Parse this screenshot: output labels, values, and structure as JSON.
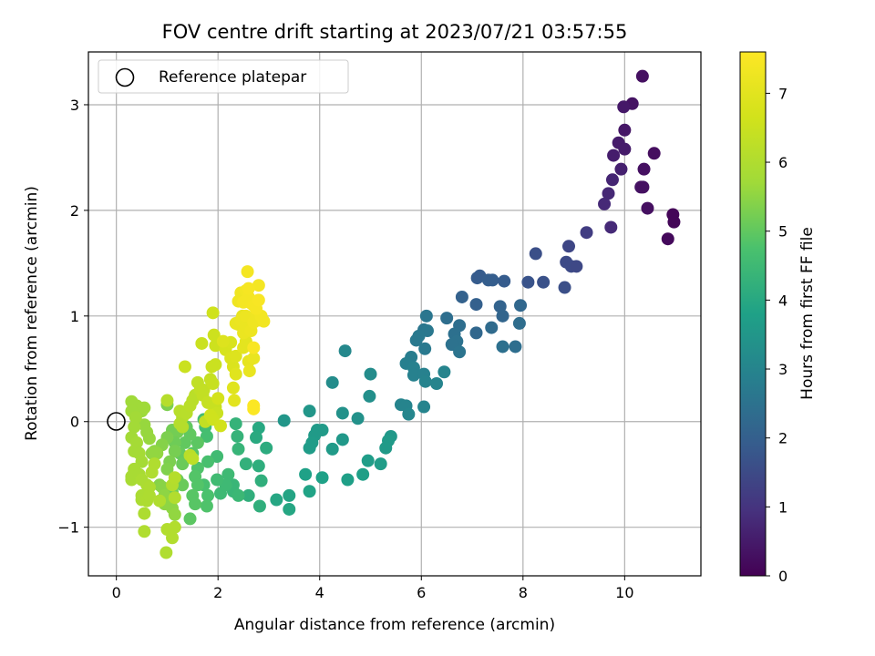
{
  "chart_data": {
    "type": "scatter",
    "title": "FOV centre drift starting at 2023/07/21 03:57:55",
    "xlabel": "Angular distance from reference (arcmin)",
    "ylabel": "Rotation from reference (arcmin)",
    "xlim": [
      -0.55,
      11.5
    ],
    "ylim": [
      -1.46,
      3.5
    ],
    "xticks": [
      0,
      2,
      4,
      6,
      8,
      10
    ],
    "yticks": [
      -1,
      0,
      1,
      2,
      3
    ],
    "xtick_labels": [
      "0",
      "2",
      "4",
      "6",
      "8",
      "10"
    ],
    "ytick_labels": [
      "−1",
      "0",
      "1",
      "2",
      "3"
    ],
    "grid": true,
    "legend": {
      "position": "upper-left",
      "entries": [
        "Reference platepar"
      ]
    },
    "reference_point": {
      "x": 0,
      "y": 0,
      "label": "Reference platepar"
    },
    "colorbar": {
      "label": "Hours from first FF file",
      "range": [
        0,
        7.6
      ],
      "ticks": [
        0,
        1,
        2,
        3,
        4,
        5,
        6,
        7
      ],
      "tick_labels": [
        "0",
        "1",
        "2",
        "3",
        "4",
        "5",
        "6",
        "7"
      ],
      "colormap": "viridis"
    },
    "points": [
      [
        10.35,
        3.27,
        0.3
      ],
      [
        10.15,
        3.01,
        0.35
      ],
      [
        9.98,
        2.98,
        0.45
      ],
      [
        10.0,
        2.76,
        0.4
      ],
      [
        9.88,
        2.64,
        0.5
      ],
      [
        10.0,
        2.58,
        0.5
      ],
      [
        9.78,
        2.52,
        0.55
      ],
      [
        10.58,
        2.54,
        0.25
      ],
      [
        9.93,
        2.39,
        0.6
      ],
      [
        10.38,
        2.39,
        0.3
      ],
      [
        9.76,
        2.29,
        0.7
      ],
      [
        9.68,
        2.16,
        0.75
      ],
      [
        10.32,
        2.22,
        0.35
      ],
      [
        10.36,
        2.22,
        0.3
      ],
      [
        9.6,
        2.06,
        0.8
      ],
      [
        10.45,
        2.02,
        0.3
      ],
      [
        10.95,
        1.96,
        0.1
      ],
      [
        10.97,
        1.89,
        0.1
      ],
      [
        9.73,
        1.84,
        0.8
      ],
      [
        10.85,
        1.73,
        0.15
      ],
      [
        9.25,
        1.79,
        1.2
      ],
      [
        8.9,
        1.66,
        1.4
      ],
      [
        8.25,
        1.59,
        1.6
      ],
      [
        8.85,
        1.51,
        1.5
      ],
      [
        8.95,
        1.47,
        1.5
      ],
      [
        9.05,
        1.47,
        1.45
      ],
      [
        8.1,
        1.32,
        1.7
      ],
      [
        8.4,
        1.32,
        1.65
      ],
      [
        8.82,
        1.27,
        1.6
      ],
      [
        7.1,
        1.36,
        1.9
      ],
      [
        7.15,
        1.38,
        1.9
      ],
      [
        7.32,
        1.34,
        1.95
      ],
      [
        7.4,
        1.34,
        1.95
      ],
      [
        7.63,
        1.33,
        1.9
      ],
      [
        6.8,
        1.18,
        2.05
      ],
      [
        7.08,
        1.11,
        2.0
      ],
      [
        7.55,
        1.09,
        2.1
      ],
      [
        7.95,
        1.1,
        2.2
      ],
      [
        7.6,
        1.0,
        2.15
      ],
      [
        6.5,
        0.98,
        2.4
      ],
      [
        6.75,
        0.91,
        2.4
      ],
      [
        7.38,
        0.89,
        2.3
      ],
      [
        7.93,
        0.93,
        2.35
      ],
      [
        7.08,
        0.84,
        2.2
      ],
      [
        6.65,
        0.83,
        2.45
      ],
      [
        6.7,
        0.76,
        2.5
      ],
      [
        6.6,
        0.73,
        2.5
      ],
      [
        7.6,
        0.71,
        2.45
      ],
      [
        7.85,
        0.71,
        2.4
      ],
      [
        6.75,
        0.66,
        2.55
      ],
      [
        6.1,
        1.0,
        2.6
      ],
      [
        6.05,
        0.87,
        2.6
      ],
      [
        6.12,
        0.86,
        2.65
      ],
      [
        5.95,
        0.81,
        2.7
      ],
      [
        5.9,
        0.77,
        2.7
      ],
      [
        6.07,
        0.69,
        2.7
      ],
      [
        5.8,
        0.61,
        2.8
      ],
      [
        5.7,
        0.55,
        2.85
      ],
      [
        5.85,
        0.51,
        2.9
      ],
      [
        5.85,
        0.44,
        2.9
      ],
      [
        6.05,
        0.45,
        2.9
      ],
      [
        6.08,
        0.38,
        2.95
      ],
      [
        6.3,
        0.36,
        3.0
      ],
      [
        6.45,
        0.47,
        3.0
      ],
      [
        5.6,
        0.16,
        3.0
      ],
      [
        5.7,
        0.15,
        3.0
      ],
      [
        5.75,
        0.07,
        3.05
      ],
      [
        6.05,
        0.14,
        3.0
      ],
      [
        4.5,
        0.67,
        3.1
      ],
      [
        4.25,
        0.37,
        3.2
      ],
      [
        5.0,
        0.45,
        3.2
      ],
      [
        4.98,
        0.24,
        3.3
      ],
      [
        4.45,
        0.08,
        3.35
      ],
      [
        4.75,
        0.03,
        3.35
      ],
      [
        3.8,
        0.1,
        3.5
      ],
      [
        3.3,
        0.01,
        3.5
      ],
      [
        3.95,
        -0.08,
        3.6
      ],
      [
        4.05,
        -0.08,
        3.6
      ],
      [
        3.9,
        -0.13,
        3.6
      ],
      [
        3.85,
        -0.2,
        3.65
      ],
      [
        3.8,
        -0.25,
        3.65
      ],
      [
        4.45,
        -0.17,
        3.55
      ],
      [
        4.25,
        -0.26,
        3.6
      ],
      [
        5.4,
        -0.14,
        3.55
      ],
      [
        5.35,
        -0.18,
        3.6
      ],
      [
        5.3,
        -0.25,
        3.6
      ],
      [
        5.2,
        -0.4,
        3.7
      ],
      [
        4.95,
        -0.37,
        3.7
      ],
      [
        4.85,
        -0.5,
        3.75
      ],
      [
        4.55,
        -0.55,
        3.75
      ],
      [
        4.05,
        -0.53,
        3.8
      ],
      [
        3.8,
        -0.66,
        3.85
      ],
      [
        3.72,
        -0.5,
        3.8
      ],
      [
        3.4,
        -0.7,
        3.9
      ],
      [
        3.4,
        -0.83,
        3.95
      ],
      [
        3.15,
        -0.74,
        3.95
      ],
      [
        2.8,
        -0.06,
        4.0
      ],
      [
        2.75,
        -0.15,
        4.05
      ],
      [
        2.95,
        -0.25,
        4.1
      ],
      [
        2.8,
        -0.42,
        4.15
      ],
      [
        2.85,
        -0.56,
        4.2
      ],
      [
        2.82,
        -0.8,
        4.2
      ],
      [
        2.6,
        -0.7,
        4.2
      ],
      [
        2.55,
        -0.4,
        4.25
      ],
      [
        2.35,
        -0.02,
        4.3
      ],
      [
        2.38,
        -0.14,
        4.3
      ],
      [
        2.4,
        -0.26,
        4.35
      ],
      [
        2.3,
        -0.6,
        4.4
      ],
      [
        2.3,
        -0.66,
        4.4
      ],
      [
        2.4,
        -0.7,
        4.45
      ],
      [
        2.2,
        -0.5,
        4.5
      ],
      [
        2.05,
        -0.68,
        4.5
      ],
      [
        2.15,
        -0.6,
        4.5
      ],
      [
        1.98,
        -0.55,
        4.55
      ],
      [
        1.98,
        -0.33,
        4.55
      ],
      [
        1.75,
        -0.05,
        4.6
      ],
      [
        1.72,
        0.02,
        4.6
      ],
      [
        1.78,
        -0.14,
        4.65
      ],
      [
        1.8,
        -0.38,
        4.7
      ],
      [
        1.72,
        -0.6,
        4.7
      ],
      [
        1.8,
        -0.7,
        4.75
      ],
      [
        1.78,
        -0.8,
        4.8
      ],
      [
        1.6,
        -0.44,
        4.8
      ],
      [
        1.55,
        -0.52,
        4.85
      ],
      [
        1.6,
        -0.6,
        4.85
      ],
      [
        1.5,
        -0.7,
        4.9
      ],
      [
        1.55,
        -0.78,
        4.9
      ],
      [
        1.45,
        -0.92,
        4.95
      ],
      [
        1.5,
        -0.3,
        4.9
      ],
      [
        1.6,
        -0.2,
        4.95
      ],
      [
        1.45,
        -0.12,
        5.0
      ],
      [
        1.38,
        -0.05,
        5.0
      ],
      [
        1.35,
        -0.2,
        5.0
      ],
      [
        1.25,
        -0.3,
        5.05
      ],
      [
        1.3,
        -0.4,
        5.1
      ],
      [
        1.2,
        -0.55,
        5.1
      ],
      [
        1.3,
        -0.6,
        5.1
      ],
      [
        1.1,
        -0.67,
        5.15
      ],
      [
        1.1,
        -0.08,
        5.2
      ],
      [
        1.2,
        -0.1,
        5.2
      ],
      [
        1.15,
        -0.2,
        5.15
      ],
      [
        1.15,
        -0.28,
        5.25
      ],
      [
        1.0,
        -0.15,
        5.3
      ],
      [
        1.0,
        0.16,
        5.3
      ],
      [
        1.05,
        -0.38,
        5.3
      ],
      [
        1.0,
        -0.45,
        5.35
      ],
      [
        0.9,
        -0.22,
        5.4
      ],
      [
        0.85,
        -0.6,
        5.4
      ],
      [
        0.9,
        -0.62,
        5.45
      ],
      [
        0.95,
        -0.7,
        5.5
      ],
      [
        0.95,
        -0.78,
        5.5
      ],
      [
        1.1,
        -0.82,
        5.5
      ],
      [
        1.15,
        -0.88,
        5.55
      ],
      [
        0.75,
        -0.28,
        5.5
      ],
      [
        0.8,
        -0.3,
        5.55
      ],
      [
        0.7,
        -0.3,
        5.55
      ],
      [
        0.65,
        -0.16,
        5.6
      ],
      [
        0.6,
        -0.1,
        5.6
      ],
      [
        0.55,
        -0.03,
        5.6
      ],
      [
        0.5,
        0.1,
        5.65
      ],
      [
        0.55,
        0.13,
        5.7
      ],
      [
        0.4,
        0.15,
        5.7
      ],
      [
        0.3,
        0.19,
        5.7
      ],
      [
        0.3,
        0.1,
        5.7
      ],
      [
        0.38,
        0.04,
        5.75
      ],
      [
        0.35,
        -0.05,
        5.75
      ],
      [
        0.3,
        -0.15,
        5.75
      ],
      [
        0.4,
        -0.2,
        5.8
      ],
      [
        0.35,
        -0.28,
        5.8
      ],
      [
        0.45,
        -0.3,
        5.8
      ],
      [
        0.5,
        -0.38,
        5.8
      ],
      [
        0.35,
        -0.45,
        5.85
      ],
      [
        0.3,
        -0.52,
        5.85
      ],
      [
        0.3,
        -0.55,
        5.85
      ],
      [
        0.45,
        -0.5,
        5.85
      ],
      [
        0.5,
        -0.55,
        5.9
      ],
      [
        0.6,
        -0.6,
        5.9
      ],
      [
        0.5,
        -0.7,
        5.9
      ],
      [
        0.5,
        -0.74,
        5.9
      ],
      [
        0.6,
        -0.75,
        5.95
      ],
      [
        0.55,
        -0.87,
        5.95
      ],
      [
        0.65,
        -0.62,
        5.95
      ],
      [
        0.65,
        -0.7,
        5.95
      ],
      [
        0.7,
        -0.48,
        6.0
      ],
      [
        0.75,
        -0.4,
        6.0
      ],
      [
        0.55,
        -1.04,
        6.0
      ],
      [
        0.85,
        -0.75,
        6.0
      ],
      [
        0.98,
        -1.24,
        6.0
      ],
      [
        1.0,
        -1.02,
        6.05
      ],
      [
        1.1,
        -1.1,
        6.05
      ],
      [
        1.15,
        -1.0,
        6.05
      ],
      [
        1.15,
        -0.72,
        6.05
      ],
      [
        1.1,
        -0.6,
        6.05
      ],
      [
        1.15,
        -0.53,
        6.1
      ],
      [
        1.25,
        -0.02,
        6.1
      ],
      [
        1.3,
        0.04,
        6.1
      ],
      [
        1.3,
        -0.05,
        6.1
      ],
      [
        1.0,
        0.2,
        6.1
      ],
      [
        1.25,
        0.1,
        6.15
      ],
      [
        1.38,
        0.08,
        6.15
      ],
      [
        1.45,
        0.15,
        6.2
      ],
      [
        1.5,
        0.2,
        6.2
      ],
      [
        1.55,
        0.25,
        6.2
      ],
      [
        1.45,
        -0.32,
        6.2
      ],
      [
        1.5,
        -0.35,
        6.25
      ],
      [
        1.65,
        0.3,
        6.3
      ],
      [
        1.6,
        0.37,
        6.3
      ],
      [
        1.7,
        0.25,
        6.35
      ],
      [
        1.72,
        0.3,
        6.35
      ],
      [
        1.75,
        0.0,
        6.35
      ],
      [
        1.8,
        0.18,
        6.4
      ],
      [
        1.85,
        0.4,
        6.4
      ],
      [
        1.9,
        0.36,
        6.45
      ],
      [
        1.9,
        0.16,
        6.45
      ],
      [
        1.95,
        0.14,
        6.45
      ],
      [
        1.98,
        0.08,
        6.5
      ],
      [
        1.88,
        0.52,
        6.5
      ],
      [
        1.95,
        0.54,
        6.5
      ],
      [
        1.68,
        0.74,
        6.5
      ],
      [
        1.35,
        0.52,
        6.5
      ],
      [
        1.95,
        0.72,
        6.55
      ],
      [
        1.92,
        0.82,
        6.55
      ],
      [
        1.9,
        1.03,
        6.6
      ],
      [
        1.85,
        0.06,
        6.6
      ],
      [
        1.9,
        0.02,
        6.6
      ],
      [
        2.05,
        -0.04,
        6.65
      ],
      [
        2.0,
        0.22,
        6.7
      ],
      [
        2.15,
        0.68,
        6.75
      ],
      [
        2.25,
        0.75,
        6.8
      ],
      [
        2.3,
        0.52,
        6.85
      ],
      [
        2.25,
        0.6,
        6.85
      ],
      [
        2.35,
        0.62,
        6.9
      ],
      [
        2.1,
        0.76,
        6.9
      ],
      [
        2.35,
        0.45,
        6.95
      ],
      [
        2.3,
        0.32,
        6.95
      ],
      [
        2.32,
        0.2,
        7.0
      ],
      [
        2.5,
        0.7,
        7.05
      ],
      [
        2.55,
        0.76,
        7.05
      ],
      [
        2.4,
        0.92,
        7.05
      ],
      [
        2.48,
        1.0,
        7.1
      ],
      [
        2.6,
        0.57,
        7.1
      ],
      [
        2.62,
        0.48,
        7.15
      ],
      [
        2.7,
        0.6,
        7.15
      ],
      [
        2.35,
        0.93,
        7.15
      ],
      [
        2.45,
        0.96,
        7.2
      ],
      [
        2.5,
        0.84,
        7.2
      ],
      [
        2.55,
        0.9,
        7.2
      ],
      [
        2.55,
        1.0,
        7.25
      ],
      [
        2.65,
        0.86,
        7.25
      ],
      [
        2.7,
        0.94,
        7.3
      ],
      [
        2.75,
        1.02,
        7.3
      ],
      [
        2.8,
        0.96,
        7.3
      ],
      [
        2.85,
        1.0,
        7.35
      ],
      [
        2.9,
        0.95,
        7.35
      ],
      [
        2.45,
        1.22,
        7.3
      ],
      [
        2.55,
        1.24,
        7.35
      ],
      [
        2.4,
        1.14,
        7.3
      ],
      [
        2.5,
        1.13,
        7.4
      ],
      [
        2.6,
        1.18,
        7.4
      ],
      [
        2.65,
        1.12,
        7.4
      ],
      [
        2.7,
        1.1,
        7.45
      ],
      [
        2.75,
        1.07,
        7.45
      ],
      [
        2.8,
        1.29,
        7.4
      ],
      [
        2.6,
        1.26,
        7.45
      ],
      [
        2.58,
        1.42,
        7.4
      ],
      [
        2.8,
        1.15,
        7.5
      ],
      [
        2.7,
        0.7,
        7.5
      ],
      [
        2.7,
        0.15,
        7.55
      ],
      [
        2.7,
        0.12,
        7.55
      ]
    ]
  }
}
